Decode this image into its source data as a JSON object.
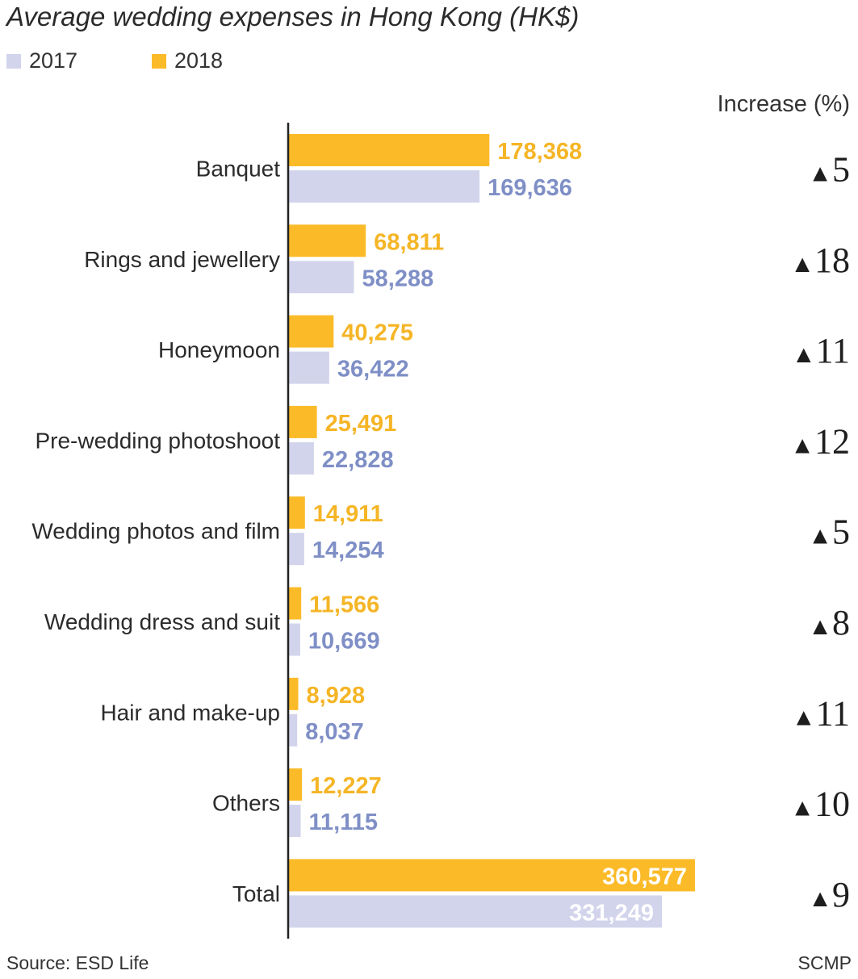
{
  "chart_data": {
    "type": "bar",
    "orientation": "horizontal",
    "title": "Average wedding expenses in Hong Kong (HK$)",
    "categories": [
      "Banquet",
      "Rings and jewellery",
      "Honeymoon",
      "Pre-wedding photoshoot",
      "Wedding photos and film",
      "Wedding dress and suit",
      "Hair and make-up",
      "Others",
      "Total"
    ],
    "series": [
      {
        "name": "2018",
        "color": "#fbbb28",
        "label_color": "#f5b526",
        "values": [
          178368,
          68811,
          40275,
          25491,
          14911,
          11566,
          8928,
          12227,
          360577
        ]
      },
      {
        "name": "2017",
        "color": "#d2d4ec",
        "label_color": "#7f8fc6",
        "values": [
          169636,
          58288,
          36422,
          22828,
          14254,
          10669,
          8037,
          11115,
          331249
        ]
      }
    ],
    "value_labels": {
      "2018": [
        "178,368",
        "68,811",
        "40,275",
        "25,491",
        "14,911",
        "11,566",
        "8,928",
        "12,227",
        "360,577"
      ],
      "2017": [
        "169,636",
        "58,288",
        "36,422",
        "22,828",
        "14,254",
        "10,669",
        "8,037",
        "11,115",
        "331,249"
      ]
    },
    "increase_header": "Increase (%)",
    "increase": [
      "5",
      "18",
      "11",
      "12",
      "5",
      "8",
      "11",
      "10",
      "9"
    ],
    "increase_symbol": "▲",
    "xlim": [
      0,
      360577
    ],
    "legend_position": "top-left",
    "grid": false
  },
  "footer": {
    "source": "Source: ESD Life",
    "credit": "SCMP"
  }
}
